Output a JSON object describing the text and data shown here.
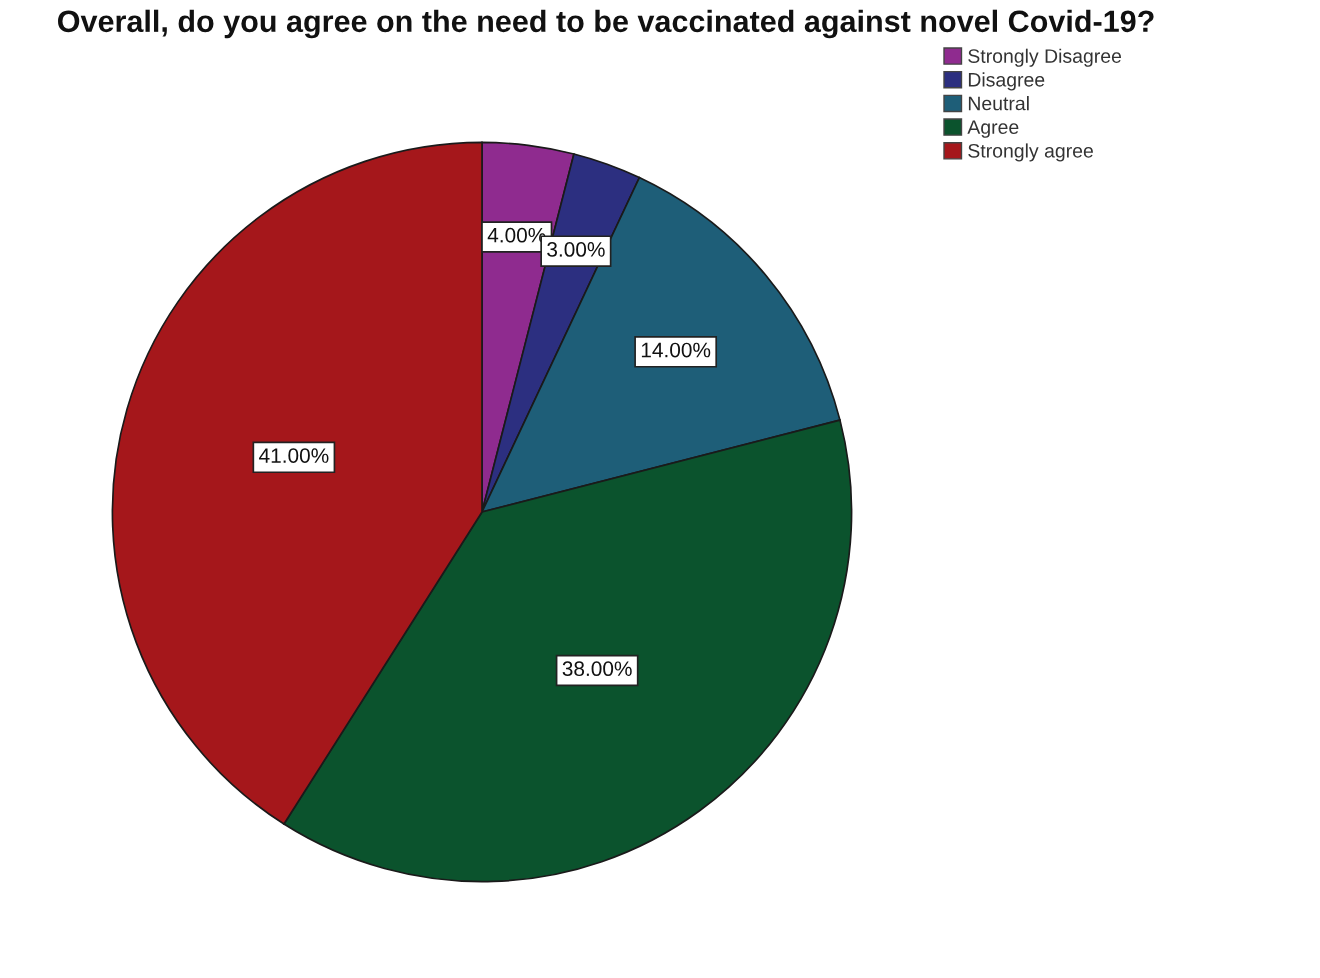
{
  "chart_data": {
    "type": "pie",
    "title": "Overall, do you agree on the need to be vaccinated against novel Covid-19?",
    "categories": [
      "Strongly Disagree",
      "Disagree",
      "Neutral",
      "Agree",
      "Strongly agree"
    ],
    "values": [
      4,
      3,
      14,
      38,
      41
    ],
    "colors": [
      "#8f2b8f",
      "#2c2f80",
      "#1e5e78",
      "#0b532d",
      "#a5171b"
    ],
    "value_labels": [
      "4.00%",
      "3.00%",
      "14.00%",
      "38.00%",
      "41.00%"
    ],
    "legend": "top right"
  }
}
